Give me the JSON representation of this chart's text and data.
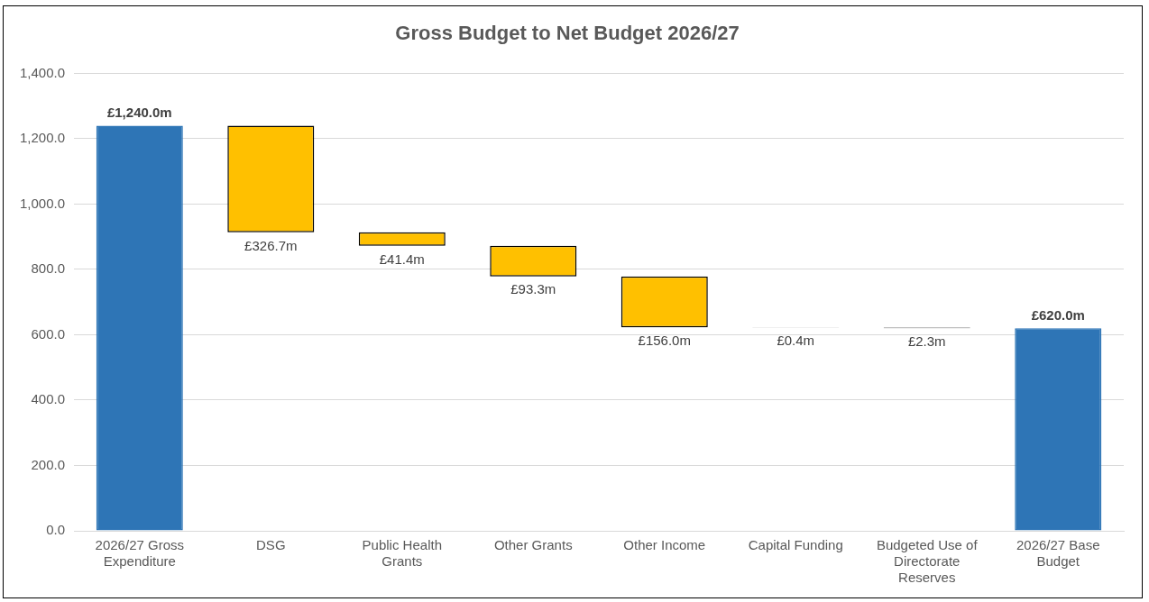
{
  "chart_data": {
    "type": "bar",
    "title": "Gross Budget to Net Budget 2026/27",
    "categories": [
      "2026/27 Gross Expenditure",
      "DSG",
      "Public Health Grants",
      "Other Grants",
      "Other Income",
      "Capital Funding",
      "Budgeted Use of Directorate Reserves",
      "2026/27 Base Budget"
    ],
    "values": [
      1240.0,
      326.7,
      41.4,
      93.3,
      156.0,
      0.4,
      2.3,
      620.0
    ],
    "base": [
      0,
      913.3,
      871.9,
      778.6,
      622.6,
      622.2,
      619.9,
      0
    ],
    "colors": [
      "#2e75b6",
      "#ffc000",
      "#ffc000",
      "#ffc000",
      "#ffc000",
      "#000000",
      "#000000",
      "#2e75b6"
    ],
    "value_labels": [
      "£1,240.0m",
      "£326.7m",
      "£41.4m",
      "£93.3m",
      "£156.0m",
      "£0.4m",
      "£2.3m",
      "£620.0m"
    ],
    "ylim": [
      0,
      1400
    ],
    "yticks": [
      {
        "value": 0,
        "label": "0.0"
      },
      {
        "value": 200,
        "label": "200.0"
      },
      {
        "value": 400,
        "label": "400.0"
      },
      {
        "value": 600,
        "label": "600.0"
      },
      {
        "value": 800,
        "label": "800.0"
      },
      {
        "value": 1000,
        "label": "1,000.0"
      },
      {
        "value": 1200,
        "label": "1,200.0"
      },
      {
        "value": 1400,
        "label": "1,400.0"
      }
    ],
    "grid": "y"
  }
}
